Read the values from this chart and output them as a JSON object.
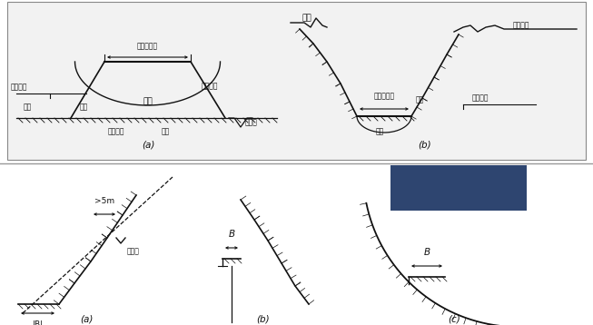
{
  "bg_top": "#f0f0f0",
  "bg_bot": "#ffffff",
  "lc": "#111111",
  "tc": "#111111",
  "blue_rect_color": "#2e4570",
  "label_a_top": "(a)",
  "label_b_top": "(b)",
  "label_a_bot": "(a)",
  "label_b_bot": "(b)",
  "label_c_bot": "(c)",
  "fs_cn": 5.5,
  "fs_label": 7.5
}
